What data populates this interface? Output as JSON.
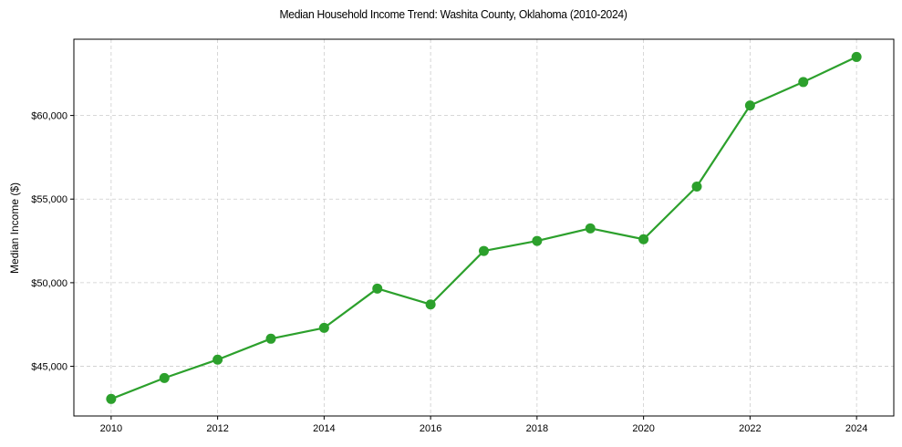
{
  "chart_data": {
    "type": "line",
    "title": "Median Household Income Trend: Washita County, Oklahoma (2010-2024)",
    "xlabel": "",
    "ylabel": "Median Income ($)",
    "x": [
      2010,
      2011,
      2012,
      2013,
      2014,
      2015,
      2016,
      2017,
      2018,
      2019,
      2020,
      2021,
      2022,
      2023,
      2024
    ],
    "series": [
      {
        "name": "Median Household Income",
        "color": "#2ca02c",
        "marker": "circle",
        "values": [
          43050,
          44300,
          45400,
          46650,
          47300,
          49650,
          48700,
          51900,
          52500,
          53250,
          52600,
          55750,
          60600,
          62000,
          63500
        ]
      }
    ],
    "xticks": [
      "2010",
      "2012",
      "2014",
      "2016",
      "2018",
      "2020",
      "2022",
      "2024"
    ],
    "yticks": [
      "$45,000",
      "$50,000",
      "$55,000",
      "$60,000"
    ],
    "ytick_values": [
      45000,
      50000,
      55000,
      60000
    ],
    "xlim": [
      2009.3,
      2024.7
    ],
    "ylim": [
      42030,
      64560
    ],
    "grid": true,
    "legend": null
  }
}
